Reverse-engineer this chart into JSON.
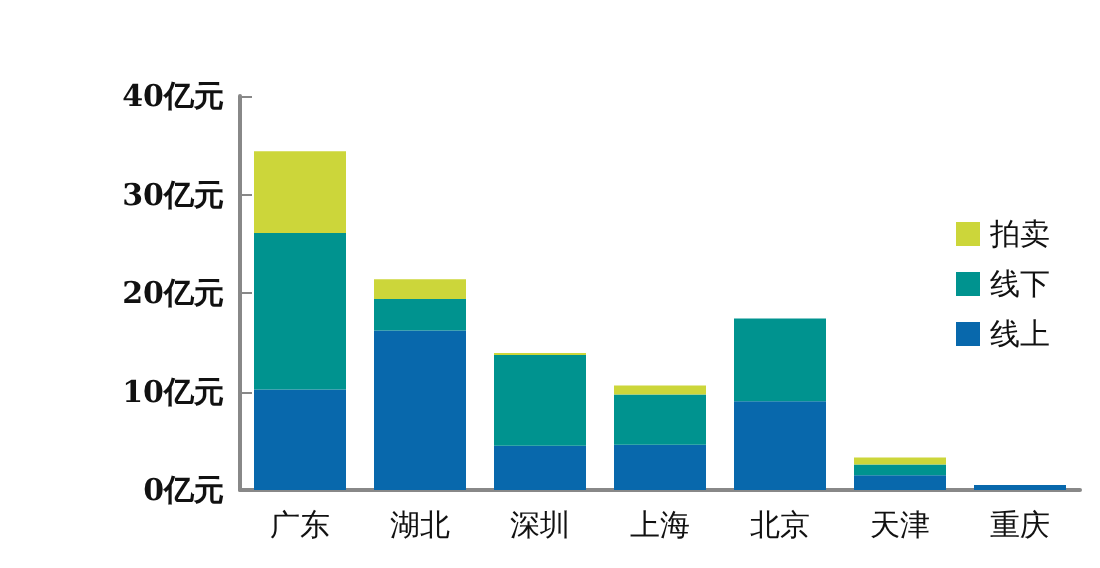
{
  "chart_data": {
    "type": "bar",
    "stacked": true,
    "categories": [
      "广东",
      "湖北",
      "深圳",
      "上海",
      "北京",
      "天津",
      "重庆"
    ],
    "series": [
      {
        "name": "线上",
        "color": "#0868ac",
        "values": [
          10.2,
          16.2,
          4.5,
          4.6,
          9.0,
          1.5,
          0.5
        ]
      },
      {
        "name": "线下",
        "color": "#00938f",
        "values": [
          15.9,
          3.2,
          9.2,
          5.1,
          8.4,
          1.1,
          0
        ]
      },
      {
        "name": "拍卖",
        "color": "#ccd63a",
        "values": [
          8.3,
          2.0,
          0.2,
          0.9,
          0,
          0.7,
          0
        ]
      }
    ],
    "ylim": [
      0,
      40
    ],
    "yticks": [
      {
        "value": 0,
        "label": "0亿元"
      },
      {
        "value": 10,
        "label": "10亿元"
      },
      {
        "value": 20,
        "label": "20亿元"
      },
      {
        "value": 30,
        "label": "30亿元"
      },
      {
        "value": 40,
        "label": "40亿元"
      }
    ],
    "grid": false,
    "legend": "right"
  }
}
